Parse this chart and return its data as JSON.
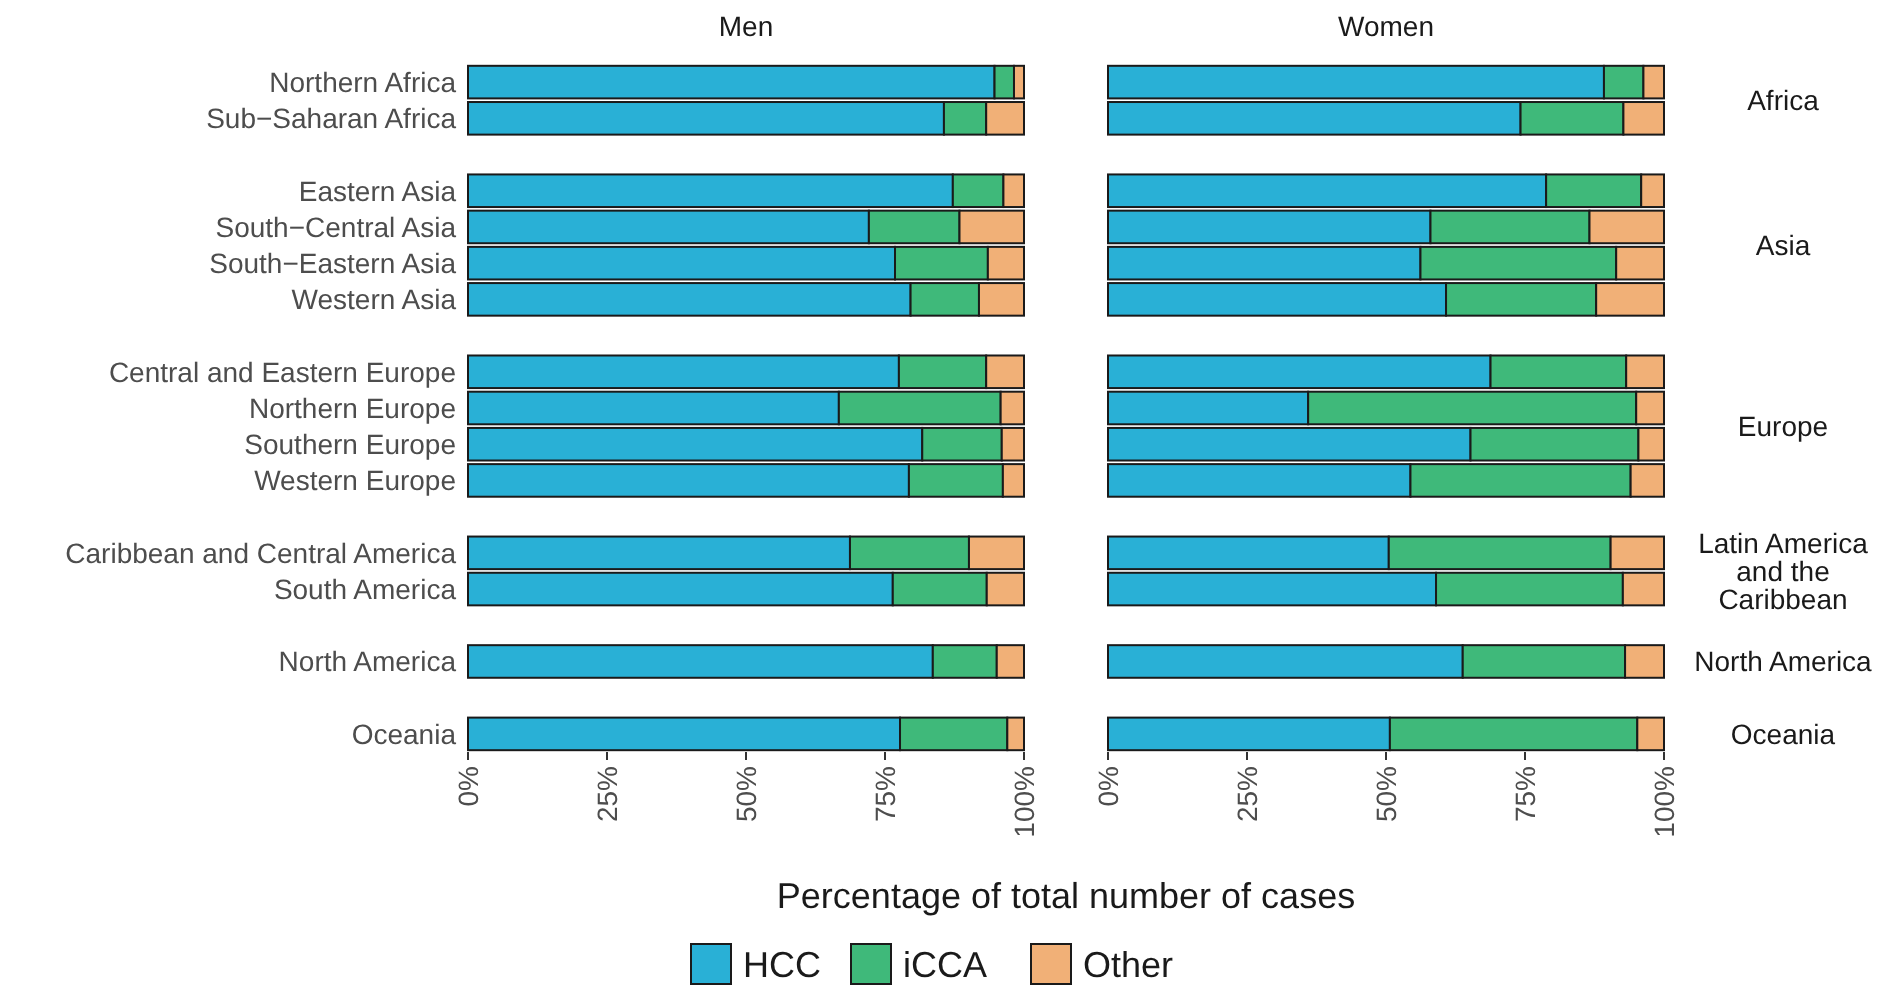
{
  "chart_data": [
    {
      "type": "bar",
      "orientation": "horizontal",
      "stacked": true,
      "title": "Men",
      "xlabel": "Percentage of total number of cases",
      "legend": "bottom",
      "categories": [
        "Northern Africa",
        "Sub−Saharan Africa",
        null,
        "Eastern Asia",
        "South−Central Asia",
        "South−Eastern Asia",
        "Western Asia",
        null,
        "Central and Eastern Europe",
        "Northern Europe",
        "Southern Europe",
        "Western Europe",
        null,
        "Caribbean and Central America",
        "South America",
        null,
        "North America",
        null,
        "Oceania"
      ],
      "xlim": [
        0,
        100
      ],
      "xticks": [
        {
          "value": 0,
          "label": "0%"
        },
        {
          "value": 25,
          "label": "25%"
        },
        {
          "value": 50,
          "label": "50%"
        },
        {
          "value": 75,
          "label": "75%"
        },
        {
          "value": 100,
          "label": "100%"
        }
      ],
      "series": [
        {
          "name": "HCC",
          "color": "#29b0d6",
          "values": [
            94.7,
            85.6,
            null,
            87.2,
            72.1,
            76.8,
            79.6,
            null,
            77.5,
            66.7,
            81.7,
            79.3,
            null,
            68.7,
            76.4,
            null,
            83.6,
            null,
            77.7
          ]
        },
        {
          "name": "iCCA",
          "color": "#3fb97a",
          "values": [
            3.5,
            7.6,
            null,
            9.1,
            16.3,
            16.7,
            12.3,
            null,
            15.7,
            29.1,
            14.3,
            16.9,
            null,
            21.4,
            16.9,
            null,
            11.5,
            null,
            19.3
          ]
        },
        {
          "name": "Other",
          "color": "#f1b077",
          "values": [
            1.8,
            6.8,
            null,
            3.7,
            11.6,
            6.5,
            8.1,
            null,
            6.8,
            4.2,
            4.0,
            3.8,
            null,
            9.9,
            6.7,
            null,
            4.9,
            null,
            3.0
          ]
        }
      ]
    },
    {
      "type": "bar",
      "orientation": "horizontal",
      "stacked": true,
      "title": "Women",
      "tick_labels": "x",
      "categories": [
        null,
        null,
        null,
        null,
        null,
        null,
        null,
        null,
        null,
        null,
        null,
        null,
        null,
        null,
        null,
        null,
        null,
        null,
        null
      ],
      "xlim": [
        0,
        100
      ],
      "xticks": [
        {
          "value": 0,
          "label": "0%"
        },
        {
          "value": 25,
          "label": "25%"
        },
        {
          "value": 50,
          "label": "50%"
        },
        {
          "value": 75,
          "label": "75%"
        },
        {
          "value": 100,
          "label": "100%"
        }
      ],
      "annotations": [
        "Africa",
        "Asia",
        "Europe",
        "Latin America and the Caribbean",
        "North America",
        "Oceania"
      ],
      "series": [
        {
          "color": "#29b0d6",
          "values": [
            89.2,
            74.2,
            null,
            78.8,
            58.0,
            56.2,
            60.8,
            null,
            68.8,
            36.0,
            65.2,
            54.4,
            null,
            50.5,
            59.0,
            null,
            63.8,
            null,
            50.7
          ]
        },
        {
          "color": "#3fb97a",
          "values": [
            7.1,
            18.5,
            null,
            17.1,
            28.6,
            35.2,
            27.0,
            null,
            24.4,
            59.0,
            30.2,
            39.6,
            null,
            39.9,
            33.6,
            null,
            29.2,
            null,
            44.5
          ]
        },
        {
          "color": "#f1b077",
          "values": [
            3.7,
            7.3,
            null,
            4.1,
            13.4,
            8.6,
            12.2,
            null,
            6.8,
            5.0,
            4.6,
            6.0,
            null,
            9.6,
            7.4,
            null,
            7.0,
            null,
            4.8
          ]
        }
      ]
    }
  ]
}
